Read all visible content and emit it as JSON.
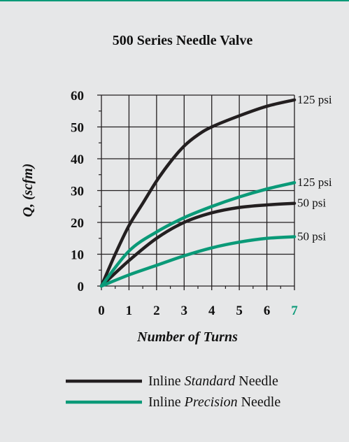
{
  "chart_data": {
    "type": "line",
    "title": "500 Series Needle Valve",
    "xlabel": "Number of Turns",
    "ylabel": "Q, (scfm)",
    "xlim": [
      0,
      7
    ],
    "ylim": [
      0,
      60
    ],
    "xticks": [
      "0",
      "1",
      "2",
      "3",
      "4",
      "5",
      "6",
      "7"
    ],
    "yticks": [
      "0",
      "10",
      "20",
      "30",
      "40",
      "50",
      "60"
    ],
    "grid": true,
    "colors": {
      "standard": "#231f20",
      "precision": "#0a9a78"
    },
    "series": [
      {
        "group": "standard",
        "end_label": "125 psi",
        "x": [
          0,
          0.5,
          1,
          1.5,
          2,
          2.5,
          3,
          3.5,
          4,
          5,
          6,
          7
        ],
        "y": [
          0,
          10,
          19,
          26,
          33,
          39,
          44,
          47.5,
          50,
          53.5,
          56.5,
          58.5
        ]
      },
      {
        "group": "standard",
        "end_label": "50 psi",
        "x": [
          0,
          1,
          2,
          3,
          4,
          5,
          6,
          7
        ],
        "y": [
          0,
          8,
          15,
          20,
          23,
          24.7,
          25.5,
          26
        ]
      },
      {
        "group": "precision",
        "end_label": "125 psi",
        "x": [
          0,
          1,
          2,
          3,
          4,
          5,
          6,
          7
        ],
        "y": [
          0,
          11,
          17,
          21.5,
          25,
          28,
          30.5,
          32.5
        ]
      },
      {
        "group": "precision",
        "end_label": "50 psi",
        "x": [
          0,
          1,
          2,
          3,
          4,
          5,
          6,
          7
        ],
        "y": [
          0,
          3.5,
          6.5,
          9.5,
          12,
          13.8,
          15,
          15.5
        ]
      }
    ],
    "legend": {
      "position": "bottom",
      "entries": [
        {
          "group": "standard",
          "prefix": "Inline ",
          "emph": "Standard",
          "suffix": " Needle"
        },
        {
          "group": "precision",
          "prefix": "Inline ",
          "emph": "Precision",
          "suffix": " Needle"
        }
      ]
    }
  }
}
